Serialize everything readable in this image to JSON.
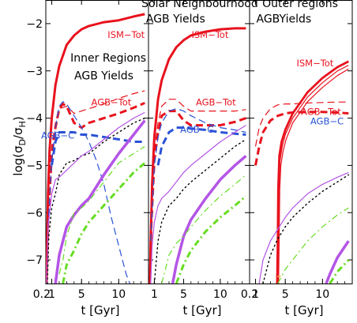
{
  "figure": {
    "ylabel": "log(σD/σH)",
    "xlabel": "t [Gyr]"
  },
  "colors": {
    "ism": "#e8121d",
    "agb_tot": "#e8121d",
    "agb_c": "#2a52d6",
    "purple": "#b455e6",
    "black": "#000000",
    "green": "#66dd22",
    "orange": "#f4a640"
  },
  "chart_data": [
    {
      "type": "line",
      "title": "Inner Regions\nAGB Yields",
      "xlabel": "t [Gyr]",
      "ylabel": "log(σD/σH)",
      "xlim": [
        0.2,
        14
      ],
      "ylim": [
        -7.5,
        -1.5
      ],
      "xticks": [
        0.2,
        1,
        5,
        10
      ],
      "xtick_labels": [
        "0.2",
        "1",
        "5",
        "10"
      ],
      "yticks": [
        -2,
        -3,
        -4,
        -5,
        -6,
        -7
      ],
      "ytick_labels": [
        "−2",
        "−3",
        "−4",
        "−5",
        "−6",
        "−7"
      ],
      "annotations": [
        {
          "text": "ISM−Tot",
          "x": 11.0,
          "y": -2.3,
          "color": "ism"
        },
        {
          "text": "Inner Regions",
          "x": 8.6,
          "y": -2.8,
          "color": "black"
        },
        {
          "text": "AGB Yields",
          "x": 8.0,
          "y": -3.18,
          "color": "black"
        },
        {
          "text": "AGB−Tot",
          "x": 9.0,
          "y": -3.73,
          "color": "agb_tot"
        },
        {
          "text": "AGB−C",
          "x": 1.8,
          "y": -4.43,
          "color": "agb_c"
        }
      ],
      "series": [
        {
          "color": "ism",
          "style": "solid",
          "width": 3,
          "x": [
            0.3,
            0.4,
            0.5,
            0.7,
            1,
            1.5,
            2,
            3,
            4,
            5,
            6,
            8,
            10,
            12,
            13.5
          ],
          "y": [
            -7.5,
            -6.5,
            -5.6,
            -4.7,
            -4.0,
            -3.3,
            -2.9,
            -2.45,
            -2.25,
            -2.12,
            -2.05,
            -1.97,
            -1.93,
            -1.85,
            -1.8
          ]
        },
        {
          "color": "agb_tot",
          "style": "dashed",
          "width": 1.2,
          "x": [
            0.3,
            0.5,
            1,
            1.5,
            2,
            3,
            4,
            5,
            6,
            8,
            10,
            12,
            13.5
          ],
          "y": [
            -7.5,
            -6.0,
            -4.6,
            -4.1,
            -3.8,
            -3.75,
            -3.9,
            -3.85,
            -3.8,
            -3.7,
            -3.58,
            -3.48,
            -3.42
          ]
        },
        {
          "color": "agb_tot",
          "style": "dashed",
          "width": 3,
          "x": [
            0.3,
            0.5,
            1,
            1.5,
            2,
            2.5,
            3,
            4,
            5,
            6,
            8,
            10,
            12,
            13.5
          ],
          "y": [
            -7.5,
            -6.2,
            -4.8,
            -4.2,
            -3.8,
            -3.7,
            -3.75,
            -4.1,
            -4.2,
            -4.1,
            -4.0,
            -3.9,
            -3.78,
            -3.68
          ]
        },
        {
          "color": "agb_c",
          "style": "dashed",
          "width": 1.2,
          "x": [
            0.5,
            1,
            1.5,
            2,
            2.5,
            3,
            4,
            5,
            6,
            7,
            8,
            9,
            10,
            11,
            11.5
          ],
          "y": [
            -6.3,
            -4.9,
            -4.2,
            -3.75,
            -3.65,
            -3.7,
            -3.95,
            -4.2,
            -4.5,
            -4.9,
            -5.4,
            -6.1,
            -6.7,
            -7.3,
            -7.5
          ]
        },
        {
          "color": "agb_c",
          "style": "dashed",
          "width": 3,
          "x": [
            1,
            1.5,
            2,
            2.5,
            3,
            4,
            5,
            6,
            8,
            10,
            12,
            13.5
          ],
          "y": [
            -5.0,
            -4.5,
            -4.3,
            -4.3,
            -4.3,
            -4.3,
            -4.35,
            -4.35,
            -4.4,
            -4.45,
            -4.5,
            -4.5
          ]
        },
        {
          "color": "black",
          "style": "dotted",
          "width": 1.4,
          "x": [
            0.4,
            0.6,
            1,
            1.5,
            2,
            3,
            4,
            5,
            6,
            8,
            10,
            12,
            13.5
          ],
          "y": [
            -7.5,
            -6.5,
            -5.9,
            -5.6,
            -5.2,
            -4.95,
            -4.9,
            -4.8,
            -4.75,
            -4.5,
            -4.3,
            -4.1,
            -4.0
          ]
        },
        {
          "color": "purple",
          "style": "solid",
          "width": 1.2,
          "x": [
            0.3,
            0.5,
            1,
            1.5,
            2,
            3,
            4,
            5,
            6,
            8,
            10,
            12,
            13.5
          ],
          "y": [
            -7.5,
            -6.3,
            -5.6,
            -5.3,
            -5.25,
            -5.1,
            -4.95,
            -4.8,
            -4.7,
            -4.45,
            -4.2,
            -4.0,
            -3.88
          ]
        },
        {
          "color": "purple",
          "style": "solid",
          "width": 3.5,
          "x": [
            1.5,
            2,
            2.5,
            3,
            4,
            5,
            6,
            8,
            10,
            12,
            13.5
          ],
          "y": [
            -7.5,
            -6.9,
            -6.6,
            -6.3,
            -6.05,
            -5.85,
            -5.7,
            -5.2,
            -4.75,
            -4.35,
            -4.05
          ]
        },
        {
          "color": "green",
          "style": "dashdot",
          "width": 1.2,
          "x": [
            2,
            2.5,
            3,
            4,
            5,
            6,
            8,
            10,
            12,
            13.5
          ],
          "y": [
            -7.3,
            -7.0,
            -6.5,
            -6.0,
            -5.9,
            -5.75,
            -5.35,
            -4.95,
            -4.75,
            -4.6
          ]
        },
        {
          "color": "green",
          "style": "dashdot",
          "width": 3,
          "x": [
            2.5,
            3,
            4,
            5,
            6,
            8,
            10,
            12,
            13.5
          ],
          "y": [
            -7.5,
            -7.1,
            -6.8,
            -6.45,
            -6.2,
            -5.85,
            -5.5,
            -5.15,
            -4.95
          ]
        }
      ]
    },
    {
      "type": "line",
      "title": "Solar Neighbourhood\nAGB Yields",
      "xlabel": "t [Gyr]",
      "xlim": [
        0.2,
        14
      ],
      "ylim": [
        -7.5,
        -1.5
      ],
      "xticks": [
        0.2,
        1,
        5,
        10
      ],
      "xtick_labels": [
        "",
        "1",
        "5",
        "10"
      ],
      "annotations": [
        {
          "text": "Solar Neighbourhood",
          "x": 7.2,
          "y": -1.65,
          "color": "black"
        },
        {
          "text": "AGB Yields",
          "x": 3.9,
          "y": -1.98,
          "color": "black"
        },
        {
          "text": "ISM−Tot",
          "x": 8.6,
          "y": -2.3,
          "color": "ism"
        },
        {
          "text": "AGB−Tot",
          "x": 9.4,
          "y": -3.73,
          "color": "agb_tot"
        },
        {
          "text": "AGB−C",
          "x": 6.8,
          "y": -4.31,
          "color": "agb_c"
        }
      ],
      "series": [
        {
          "color": "ism",
          "style": "solid",
          "width": 3,
          "x": [
            0.4,
            0.5,
            0.7,
            1,
            1.5,
            2,
            3,
            4,
            5,
            6,
            8,
            10,
            12,
            13.5
          ],
          "y": [
            -7.5,
            -6.6,
            -5.4,
            -4.4,
            -3.6,
            -3.2,
            -2.75,
            -2.5,
            -2.35,
            -2.25,
            -2.17,
            -2.12,
            -2.1,
            -2.1
          ]
        },
        {
          "color": "agb_tot",
          "style": "dashed",
          "width": 1.2,
          "x": [
            0.4,
            0.6,
            1,
            1.5,
            2,
            3,
            4,
            5,
            6,
            8,
            10,
            12,
            13.5
          ],
          "y": [
            -7.5,
            -6.0,
            -4.7,
            -4.1,
            -3.75,
            -3.6,
            -3.6,
            -3.75,
            -3.85,
            -3.85,
            -3.85,
            -3.85,
            -3.82
          ]
        },
        {
          "color": "agb_tot",
          "style": "dashed",
          "width": 3,
          "x": [
            0.4,
            0.6,
            1,
            1.5,
            2,
            3,
            4,
            5,
            6,
            8,
            10,
            12,
            13.5
          ],
          "y": [
            -7.5,
            -6.2,
            -4.9,
            -4.3,
            -3.95,
            -3.85,
            -3.85,
            -4.05,
            -4.15,
            -4.15,
            -4.15,
            -4.08,
            -4.0
          ]
        },
        {
          "color": "agb_c",
          "style": "dashed",
          "width": 1.2,
          "x": [
            0.5,
            1,
            1.5,
            2,
            3,
            4,
            5,
            6,
            8,
            10,
            12,
            13.5
          ],
          "y": [
            -6.6,
            -5.0,
            -4.4,
            -4.1,
            -3.85,
            -3.8,
            -3.85,
            -3.95,
            -4.1,
            -4.2,
            -4.25,
            -4.3
          ]
        },
        {
          "color": "agb_c",
          "style": "dashed",
          "width": 3,
          "x": [
            1.5,
            2,
            3,
            4,
            5,
            6,
            8,
            10,
            12,
            13.5
          ],
          "y": [
            -5.0,
            -4.6,
            -4.3,
            -4.2,
            -4.2,
            -4.22,
            -4.25,
            -4.3,
            -4.33,
            -4.35
          ]
        },
        {
          "color": "black",
          "style": "dotted",
          "width": 1.4,
          "x": [
            1,
            1.5,
            2,
            3,
            4,
            5,
            6,
            8,
            10,
            12,
            13.5
          ],
          "y": [
            -7.5,
            -6.6,
            -6.2,
            -5.85,
            -5.7,
            -5.5,
            -5.35,
            -5.1,
            -4.85,
            -4.6,
            -4.45
          ]
        },
        {
          "color": "purple",
          "style": "solid",
          "width": 1.2,
          "x": [
            0.5,
            0.7,
            1,
            1.5,
            2,
            3,
            4,
            5,
            6,
            8,
            10,
            12,
            13.5
          ],
          "y": [
            -7.5,
            -6.7,
            -6.2,
            -5.85,
            -5.7,
            -5.55,
            -5.35,
            -5.15,
            -5.0,
            -4.75,
            -4.5,
            -4.3,
            -4.15
          ]
        },
        {
          "color": "purple",
          "style": "solid",
          "width": 3.5,
          "x": [
            3.5,
            4,
            5,
            6,
            8,
            10,
            12,
            13.5
          ],
          "y": [
            -7.5,
            -7.1,
            -6.5,
            -6.15,
            -5.7,
            -5.3,
            -5.0,
            -4.8
          ]
        },
        {
          "color": "green",
          "style": "dashdot",
          "width": 1.2,
          "x": [
            2,
            3,
            4,
            5,
            6,
            8,
            10,
            12,
            13.5
          ],
          "y": [
            -7.5,
            -6.9,
            -6.65,
            -6.5,
            -6.3,
            -5.95,
            -5.65,
            -5.4,
            -5.2
          ]
        },
        {
          "color": "green",
          "style": "dashdot",
          "width": 3,
          "x": [
            4,
            5,
            6,
            8,
            10,
            12,
            13.5
          ],
          "y": [
            -7.5,
            -7.1,
            -6.8,
            -6.4,
            -6.1,
            -5.85,
            -5.65
          ]
        }
      ]
    },
    {
      "type": "line",
      "title": "Outer regions\nAGBYields",
      "xlabel": "t [Gyr]",
      "xlim": [
        0.2,
        14
      ],
      "ylim": [
        -7.5,
        -1.5
      ],
      "xticks": [
        0.2,
        1,
        5,
        10
      ],
      "xtick_labels": [
        "0.2",
        "1",
        "5",
        "10"
      ],
      "annotations": [
        {
          "text": "Outer regions",
          "x": 7.0,
          "y": -1.65,
          "color": "black"
        },
        {
          "text": "AGBYields",
          "x": 4.8,
          "y": -1.98,
          "color": "black"
        },
        {
          "text": "ISM−Tot",
          "x": 9.0,
          "y": -2.9,
          "color": "ism"
        },
        {
          "text": "AGB−Tot",
          "x": 9.8,
          "y": -3.93,
          "color": "agb_tot"
        },
        {
          "text": "AGB−C",
          "x": 10.6,
          "y": -4.13,
          "color": "agb_c"
        }
      ],
      "series": [
        {
          "color": "ism",
          "style": "solid",
          "width": 2.8,
          "x": [
            3.9,
            4.0,
            4.05,
            4.2,
            4.5,
            5,
            6,
            8,
            10,
            12,
            13.5
          ],
          "y": [
            -7.5,
            -6.5,
            -5.5,
            -4.8,
            -4.5,
            -4.25,
            -3.9,
            -3.45,
            -3.15,
            -2.92,
            -2.8
          ]
        },
        {
          "color": "ism",
          "style": "solid",
          "width": 1.2,
          "x": [
            4.0,
            4.08,
            4.15,
            4.3,
            4.6,
            5,
            6,
            8,
            10,
            12,
            13.5
          ],
          "y": [
            -7.5,
            -6.5,
            -5.5,
            -4.9,
            -4.6,
            -4.35,
            -4.0,
            -3.55,
            -3.25,
            -3.0,
            -2.88
          ]
        },
        {
          "color": "ism",
          "style": "solid",
          "width": 1.2,
          "x": [
            4.1,
            4.18,
            4.25,
            4.4,
            4.7,
            5.1,
            6,
            8,
            10,
            12,
            13.5
          ],
          "y": [
            -7.5,
            -6.5,
            -5.5,
            -5.0,
            -4.7,
            -4.45,
            -4.1,
            -3.65,
            -3.35,
            -3.1,
            -2.96
          ]
        },
        {
          "color": "agb_tot",
          "style": "dashed",
          "width": 1.2,
          "x": [
            1,
            1.5,
            2,
            3,
            4,
            5,
            6,
            8,
            10,
            12,
            13.5
          ],
          "y": [
            -4.6,
            -4.2,
            -4.0,
            -3.8,
            -3.72,
            -3.7,
            -3.7,
            -3.68,
            -3.67,
            -3.66,
            -3.66
          ]
        },
        {
          "color": "agb_tot",
          "style": "dashed",
          "width": 3,
          "x": [
            1,
            1.5,
            2,
            3,
            4,
            5,
            6,
            8,
            10,
            12,
            13.5
          ],
          "y": [
            -5.0,
            -4.6,
            -4.3,
            -4.05,
            -3.95,
            -3.9,
            -3.88,
            -3.87,
            -3.87,
            -3.88,
            -3.9
          ]
        },
        {
          "color": "black",
          "style": "dotted",
          "width": 1.4,
          "x": [
            2,
            3,
            4,
            5,
            6,
            8,
            10,
            12,
            13.5
          ],
          "y": [
            -7.5,
            -6.9,
            -6.55,
            -6.3,
            -6.1,
            -5.8,
            -5.55,
            -5.35,
            -5.2
          ]
        },
        {
          "color": "purple",
          "style": "solid",
          "width": 1.2,
          "x": [
            1.5,
            2,
            3,
            4,
            5,
            6,
            8,
            10,
            12,
            13.5
          ],
          "y": [
            -7.5,
            -7.0,
            -6.6,
            -6.35,
            -6.1,
            -5.9,
            -5.6,
            -5.4,
            -5.25,
            -5.15
          ]
        },
        {
          "color": "purple",
          "style": "solid",
          "width": 3.5,
          "x": [
            10.5,
            11,
            12,
            13.5
          ],
          "y": [
            -7.5,
            -7.3,
            -6.95,
            -6.6
          ]
        },
        {
          "color": "green",
          "style": "dashdot",
          "width": 1.2,
          "x": [
            4,
            5,
            6,
            8,
            10,
            12,
            13.5
          ],
          "y": [
            -7.5,
            -7.2,
            -7.0,
            -6.6,
            -6.3,
            -6.05,
            -5.9
          ]
        },
        {
          "color": "green",
          "style": "dashdot",
          "width": 3,
          "x": [
            11,
            12,
            13.5
          ],
          "y": [
            -7.5,
            -7.25,
            -7.0
          ]
        },
        {
          "color": "orange",
          "style": "solid",
          "width": 1.5,
          "x": [
            3.9,
            4.4
          ],
          "y": [
            -7.35,
            -7.35
          ]
        }
      ]
    }
  ]
}
